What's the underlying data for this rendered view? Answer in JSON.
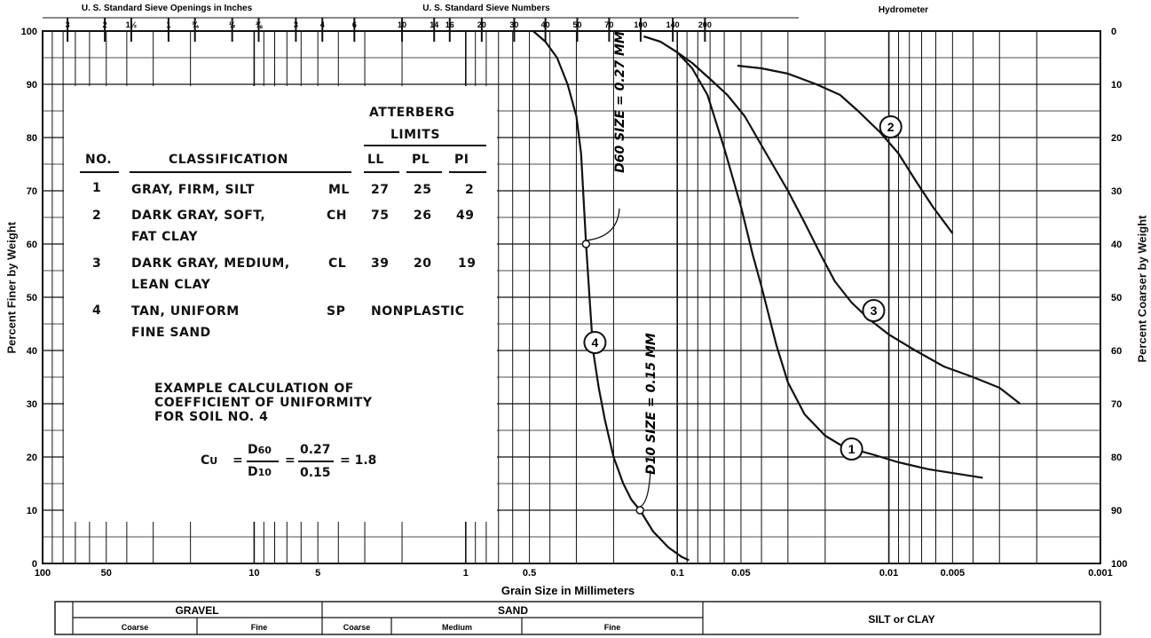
{
  "chart_data": {
    "type": "line",
    "top_labels": {
      "inches": "U. S. Standard Sieve Openings in Inches",
      "numbers": "U. S. Standard Sieve Numbers",
      "hydrometer": "Hydrometer"
    },
    "inch_sieves": [
      {
        "label": "3",
        "mm": 76.2
      },
      {
        "label": "2",
        "mm": 50.8
      },
      {
        "label": "1½",
        "mm": 38.1
      },
      {
        "label": "1",
        "mm": 25.4
      },
      {
        "label": "¾",
        "mm": 19.05
      },
      {
        "label": "½",
        "mm": 12.7
      },
      {
        "label": "⅜",
        "mm": 9.52
      }
    ],
    "number_sieves": [
      {
        "label": "3",
        "mm": 6.35
      },
      {
        "label": "4",
        "mm": 4.76
      },
      {
        "label": "6",
        "mm": 3.36
      },
      {
        "label": "10",
        "mm": 2.0
      },
      {
        "label": "14",
        "mm": 1.41
      },
      {
        "label": "16",
        "mm": 1.19
      },
      {
        "label": "20",
        "mm": 0.84
      },
      {
        "label": "30",
        "mm": 0.59
      },
      {
        "label": "40",
        "mm": 0.42
      },
      {
        "label": "50",
        "mm": 0.297
      },
      {
        "label": "70",
        "mm": 0.21
      },
      {
        "label": "100",
        "mm": 0.149
      },
      {
        "label": "140",
        "mm": 0.105
      },
      {
        "label": "200",
        "mm": 0.074
      }
    ],
    "xlabel": "Grain Size in Millimeters",
    "ylabel": "Percent Finer by Weight",
    "ylabel_right": "Percent Coarser by Weight",
    "xscale": "log",
    "xlim": [
      100,
      0.001
    ],
    "ylim": [
      0,
      100
    ],
    "x_ticks": [
      {
        "label": "100",
        "value": 100
      },
      {
        "label": "50",
        "value": 50
      },
      {
        "label": "10",
        "value": 10
      },
      {
        "label": "5",
        "value": 5
      },
      {
        "label": "1",
        "value": 1
      },
      {
        "label": "0.5",
        "value": 0.5
      },
      {
        "label": "0.1",
        "value": 0.1
      },
      {
        "label": "0.05",
        "value": 0.05
      },
      {
        "label": "0.01",
        "value": 0.01
      },
      {
        "label": "0.005",
        "value": 0.005
      },
      {
        "label": "0.001",
        "value": 0.001
      }
    ],
    "y_ticks_left": [
      "0",
      "10",
      "20",
      "30",
      "40",
      "50",
      "60",
      "70",
      "80",
      "90",
      "100"
    ],
    "y_ticks_right": [
      "100",
      "90",
      "80",
      "70",
      "60",
      "50",
      "40",
      "30",
      "20",
      "10",
      "0"
    ],
    "series": [
      {
        "name": "1",
        "x": [
          0.144,
          0.12,
          0.1,
          0.085,
          0.072,
          0.06,
          0.05,
          0.044,
          0.04,
          0.034,
          0.03,
          0.025,
          0.02,
          0.0165,
          0.012,
          0.009,
          0.0065,
          0.0045,
          0.0036
        ],
        "y": [
          99,
          98,
          96,
          93,
          88,
          78,
          67,
          58,
          52,
          41,
          34,
          28,
          24,
          22,
          20.5,
          19,
          17.7,
          16.7,
          16.1
        ]
      },
      {
        "name": "2",
        "x": [
          0.052,
          0.04,
          0.03,
          0.022,
          0.017,
          0.014,
          0.011,
          0.009,
          0.0075,
          0.0062,
          0.005
        ],
        "y": [
          93.5,
          93,
          92,
          90,
          88,
          85,
          81,
          77,
          72,
          67,
          62
        ]
      },
      {
        "name": "3",
        "x": [
          0.144,
          0.12,
          0.1,
          0.085,
          0.07,
          0.058,
          0.048,
          0.038,
          0.03,
          0.025,
          0.021,
          0.018,
          0.015,
          0.0125,
          0.01,
          0.0075,
          0.0055,
          0.004,
          0.003,
          0.0024
        ],
        "y": [
          99,
          98,
          96,
          94,
          91,
          88,
          84,
          77,
          70,
          64,
          58,
          53,
          49,
          46,
          43,
          40,
          37,
          35,
          33,
          30
        ]
      },
      {
        "name": "4",
        "x": [
          0.48,
          0.42,
          0.37,
          0.33,
          0.3,
          0.285,
          0.27,
          0.26,
          0.25,
          0.235,
          0.22,
          0.2,
          0.18,
          0.165,
          0.15,
          0.13,
          0.11,
          0.095,
          0.088
        ],
        "y": [
          100,
          98,
          95,
          90,
          84,
          77,
          60,
          50,
          40,
          33,
          27,
          20,
          15,
          12,
          10,
          6,
          3,
          1.2,
          0.6
        ]
      }
    ],
    "curve_labels": [
      {
        "label": "1",
        "x": 0.015,
        "y": 21.5
      },
      {
        "label": "2",
        "x": 0.0098,
        "y": 82
      },
      {
        "label": "3",
        "x": 0.0118,
        "y": 47.5
      },
      {
        "label": "4",
        "x": 0.245,
        "y": 41.5
      }
    ],
    "annotations": [
      {
        "text": "D60 SIZE = 0.27 MM",
        "x": 0.27,
        "y": 60
      },
      {
        "text": "D10 SIZE = 0.15 MM",
        "x": 0.15,
        "y": 10
      }
    ],
    "table": {
      "header_group": "ATTERBERG LIMITS",
      "header_group_line1": "ATTERBERG",
      "header_group_line2": "LIMITS",
      "columns": [
        "NO.",
        "CLASSIFICATION",
        "LL",
        "PL",
        "PI"
      ],
      "rows": [
        {
          "no": "1",
          "class1": "GRAY, FIRM, SILT",
          "class2": "",
          "symbol": "ML",
          "ll": "27",
          "pl": "25",
          "pi": "2"
        },
        {
          "no": "2",
          "class1": "DARK GRAY, SOFT,",
          "class2": "FAT CLAY",
          "symbol": "CH",
          "ll": "75",
          "pl": "26",
          "pi": "49"
        },
        {
          "no": "3",
          "class1": "DARK GRAY, MEDIUM,",
          "class2": "LEAN CLAY",
          "symbol": "CL",
          "ll": "39",
          "pl": "20",
          "pi": "19"
        },
        {
          "no": "4",
          "class1": "TAN, UNIFORM",
          "class2": "FINE SAND",
          "symbol": "SP",
          "limits": "NONPLASTIC"
        }
      ]
    },
    "calculation": {
      "title1": "EXAMPLE CALCULATION OF",
      "title2": "COEFFICIENT OF UNIFORMITY",
      "title3": "FOR SOIL NO. 4",
      "cu": "C",
      "cu_sub": "U",
      "num_sym": "D",
      "num_sub": "60",
      "den_sym": "D",
      "den_sub": "10",
      "num_val": "0.27",
      "den_val": "0.15",
      "result": "= 1.8"
    },
    "classification_bar": {
      "gravel": "GRAVEL",
      "sand": "SAND",
      "silt_clay": "SILT or CLAY",
      "gravel_parts": [
        "Coarse",
        "Fine"
      ],
      "sand_parts": [
        "Coarse",
        "Medium",
        "Fine"
      ]
    }
  }
}
